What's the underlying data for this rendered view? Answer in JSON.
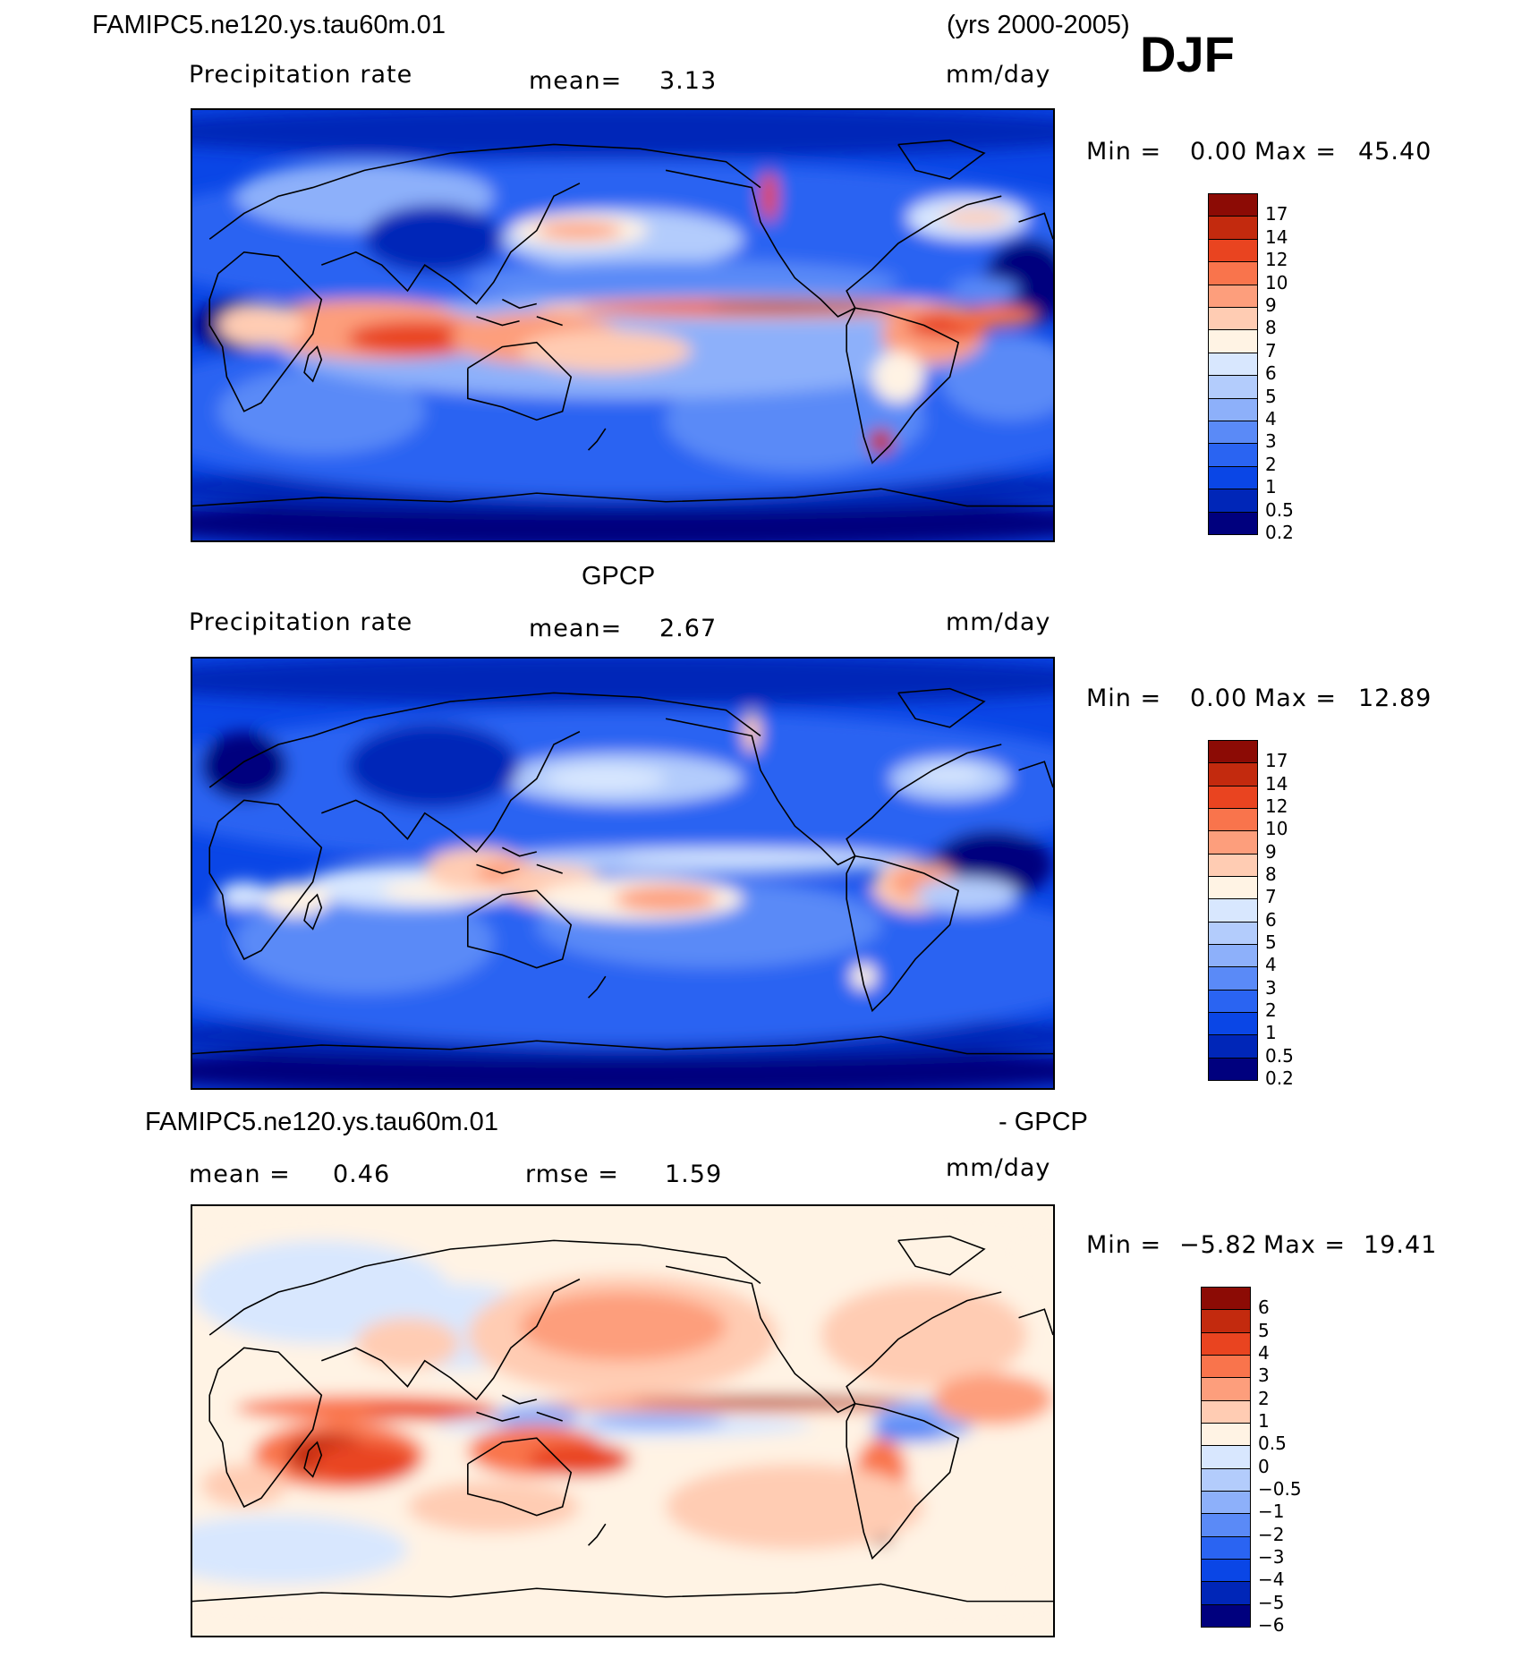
{
  "header": {
    "case_name": "FAMIPC5.ne120.ys.tau60m.01",
    "years": "(yrs 2000-2005)",
    "season": "DJF"
  },
  "colors": {
    "precip_scale": [
      "#00007e",
      "#0026b8",
      "#0a46e6",
      "#2a64f2",
      "#5a8af7",
      "#8db0fa",
      "#b3ccfc",
      "#d8e7fe",
      "#fff3e4",
      "#ffccb3",
      "#fd9e7c",
      "#f9744c",
      "#e94420",
      "#c32a0e",
      "#8c0b05"
    ],
    "diff_scale": [
      "#00007e",
      "#0026b8",
      "#0a46e6",
      "#2a64f2",
      "#5a8af7",
      "#8db0fa",
      "#b3ccfc",
      "#d8e7fe",
      "#fff3e4",
      "#ffccb3",
      "#fd9e7c",
      "#f9744c",
      "#e94420",
      "#c32a0e",
      "#8c0b05"
    ]
  },
  "chart_data": [
    {
      "type": "heatmap",
      "panel": "model",
      "title": "",
      "left_label": "Precipitation rate",
      "mean_label": "mean=",
      "mean_value": "3.13",
      "units": "mm/day",
      "min_label": "Min =",
      "min_value": "0.00",
      "max_label": "Max =",
      "max_value": "45.40",
      "colorbar_ticks": [
        "17",
        "14",
        "12",
        "10",
        "9",
        "8",
        "7",
        "6",
        "5",
        "4",
        "3",
        "2",
        "1",
        "0.5",
        "0.2"
      ]
    },
    {
      "type": "heatmap",
      "panel": "obs",
      "title": "GPCP",
      "left_label": "Precipitation rate",
      "mean_label": "mean=",
      "mean_value": "2.67",
      "units": "mm/day",
      "min_label": "Min =",
      "min_value": "0.00",
      "max_label": "Max =",
      "max_value": "12.89",
      "colorbar_ticks": [
        "17",
        "14",
        "12",
        "10",
        "9",
        "8",
        "7",
        "6",
        "5",
        "4",
        "3",
        "2",
        "1",
        "0.5",
        "0.2"
      ]
    },
    {
      "type": "heatmap",
      "panel": "difference",
      "title_left": "FAMIPC5.ne120.ys.tau60m.01",
      "title_right": "- GPCP",
      "mean_label": "mean =",
      "mean_value": "0.46",
      "rmse_label": "rmse =",
      "rmse_value": "1.59",
      "units": "mm/day",
      "min_label": "Min =",
      "min_value": "−5.82",
      "max_label": "Max =",
      "max_value": "19.41",
      "colorbar_ticks": [
        "6",
        "5",
        "4",
        "3",
        "2",
        "1",
        "0.5",
        "0",
        "−0.5",
        "−1",
        "−2",
        "−3",
        "−4",
        "−5",
        "−6"
      ]
    }
  ]
}
